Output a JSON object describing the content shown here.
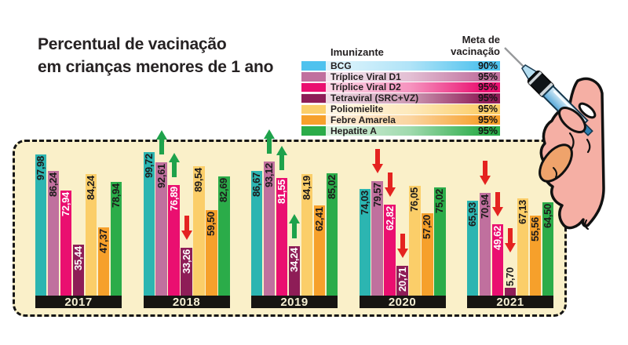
{
  "title": {
    "line1": "Percentual de vacinação",
    "line2": "em crianças menores de 1 ano"
  },
  "legend": {
    "header_immunizer": "Imunizante",
    "header_goal": "Meta de\nvacinação"
  },
  "chart_data": {
    "type": "bar",
    "unit": "percent",
    "ylim": [
      0,
      100
    ],
    "decimal_separator": ",",
    "categories": [
      "2017",
      "2018",
      "2019",
      "2020",
      "2021"
    ],
    "series": [
      {
        "name": "BCG",
        "goal": "90%",
        "bar_color": "#2CB5B1",
        "legend_color": "#4FC2EE",
        "label_color": "#1d1b1b",
        "values": [
          97.98,
          99.72,
          86.67,
          74.03,
          65.93
        ],
        "trend": [
          null,
          null,
          null,
          null,
          null
        ]
      },
      {
        "name": "Tríplice Viral D1",
        "goal": "95%",
        "bar_color": "#C0709E",
        "legend_color": "#C0709E",
        "label_color": "#1d1b1b",
        "values": [
          86.24,
          92.61,
          93.12,
          79.57,
          70.94
        ],
        "trend": [
          null,
          "up",
          "up",
          "down",
          "down"
        ]
      },
      {
        "name": "Tríplice Viral D2",
        "goal": "95%",
        "bar_color": "#EA0F70",
        "legend_color": "#EA0F70",
        "label_color": "#ffffff",
        "values": [
          72.94,
          76.89,
          81.55,
          62.82,
          49.62
        ],
        "trend": [
          null,
          "up",
          "up",
          "down",
          "down"
        ]
      },
      {
        "name": "Tetraviral (SRC+VZ)",
        "goal": "95%",
        "bar_color": "#8E1D57",
        "legend_color": "#8E1D57",
        "label_color": "#ffffff",
        "values": [
          35.44,
          33.26,
          34.24,
          20.71,
          5.7
        ],
        "trend": [
          null,
          "down",
          "up",
          "down",
          "down"
        ]
      },
      {
        "name": "Poliomielite",
        "goal": "95%",
        "bar_color": "#FBCE69",
        "legend_color": "#FBCE69",
        "label_color": "#1d1b1b",
        "values": [
          84.24,
          89.54,
          84.19,
          76.05,
          67.13
        ],
        "trend": [
          null,
          null,
          null,
          null,
          null
        ]
      },
      {
        "name": "Febre Amarela",
        "goal": "95%",
        "bar_color": "#F6A02B",
        "legend_color": "#F6A02B",
        "label_color": "#1d1b1b",
        "values": [
          47.37,
          59.5,
          62.41,
          57.2,
          55.56
        ],
        "trend": [
          null,
          null,
          null,
          null,
          null
        ]
      },
      {
        "name": "Hepatite A",
        "goal": "95%",
        "bar_color": "#2BAC49",
        "legend_color": "#2BAC49",
        "label_color": "#1d1b1b",
        "values": [
          78.94,
          82.69,
          85.02,
          75.02,
          64.5
        ],
        "trend": [
          null,
          null,
          null,
          null,
          null
        ]
      }
    ]
  },
  "colors": {
    "panel_background": "#FAF0C9",
    "panel_border": "#151515",
    "year_banner": "#171512",
    "year_text": "#F6F0D4",
    "trend_up": "#1EA24B",
    "trend_down": "#E42320"
  },
  "icons": {
    "trend_up": "arrow-up",
    "trend_down": "arrow-down",
    "illustration": "hand-holding-syringe"
  }
}
